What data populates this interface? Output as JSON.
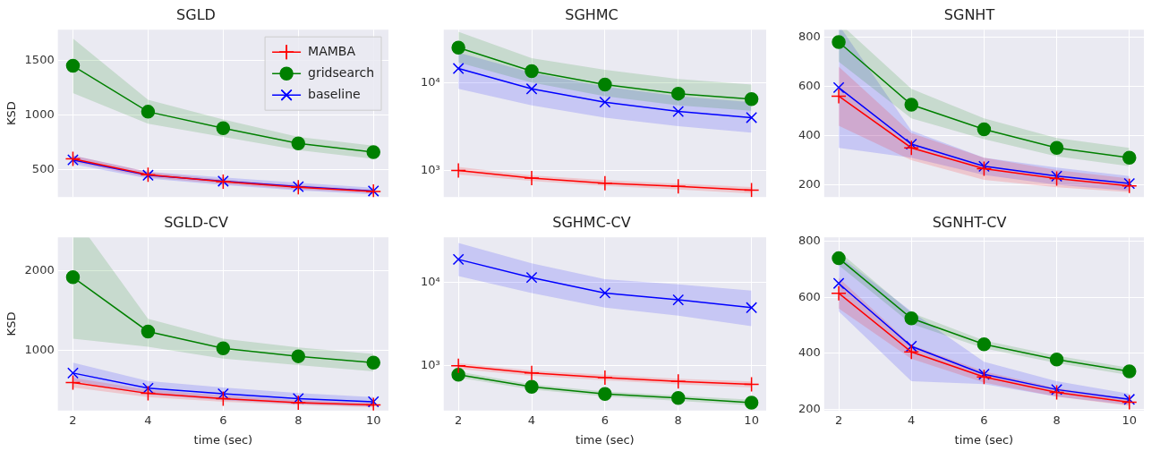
{
  "chart_data": [
    {
      "type": "line",
      "title": "SGLD",
      "y_label": "KSD",
      "x": [
        2,
        4,
        6,
        8,
        10
      ],
      "xlim": [
        1.6,
        10.4
      ],
      "xticks": [
        2,
        4,
        6,
        8,
        10
      ],
      "ylim": [
        250,
        1780
      ],
      "yticks": [
        500,
        1000,
        1500
      ],
      "grid": true,
      "tick_labels": "y",
      "legend": "upper right",
      "series": [
        {
          "name": "MAMBA",
          "color": "#ff0000",
          "marker": "plus",
          "values": [
            600,
            455,
            390,
            340,
            300
          ],
          "lower": [
            570,
            430,
            370,
            320,
            285
          ],
          "upper": [
            630,
            480,
            410,
            360,
            315
          ]
        },
        {
          "name": "gridsearch",
          "color": "#008000",
          "marker": "circle",
          "values": [
            1450,
            1030,
            880,
            740,
            660
          ],
          "lower": [
            1200,
            920,
            800,
            680,
            600
          ],
          "upper": [
            1700,
            1140,
            960,
            800,
            720
          ]
        },
        {
          "name": "baseline",
          "color": "#0000ff",
          "marker": "x",
          "values": [
            590,
            450,
            395,
            345,
            305
          ],
          "lower": [
            550,
            420,
            360,
            310,
            275
          ],
          "upper": [
            630,
            480,
            430,
            380,
            335
          ]
        }
      ]
    },
    {
      "type": "line",
      "title": "SGHMC",
      "x": [
        2,
        4,
        6,
        8,
        10
      ],
      "xlim": [
        1.6,
        10.4
      ],
      "xticks": [
        2,
        4,
        6,
        8,
        10
      ],
      "ylim": [
        500,
        40000
      ],
      "yticks": [
        {
          "value": 1000,
          "label": "10³"
        },
        {
          "value": 10000,
          "label": "10⁴"
        }
      ],
      "log": "y",
      "grid": true,
      "tick_labels": "y",
      "series": [
        {
          "name": "MAMBA",
          "color": "#ff0000",
          "marker": "plus",
          "values": [
            1000,
            820,
            720,
            660,
            600
          ],
          "lower": [
            900,
            760,
            670,
            610,
            550
          ],
          "upper": [
            1100,
            880,
            780,
            710,
            650
          ]
        },
        {
          "name": "gridsearch",
          "color": "#008000",
          "marker": "circle",
          "values": [
            25000,
            13500,
            9500,
            7500,
            6500
          ],
          "lower": [
            17000,
            10000,
            7000,
            5500,
            4800
          ],
          "upper": [
            38000,
            19000,
            14000,
            11000,
            9500
          ]
        },
        {
          "name": "baseline",
          "color": "#0000ff",
          "marker": "x",
          "values": [
            14500,
            8500,
            6000,
            4700,
            4000
          ],
          "lower": [
            8500,
            5500,
            4000,
            3200,
            2700
          ],
          "upper": [
            22000,
            13000,
            9000,
            7000,
            6000
          ]
        }
      ]
    },
    {
      "type": "line",
      "title": "SGNHT",
      "x": [
        2,
        4,
        6,
        8,
        10
      ],
      "xlim": [
        1.6,
        10.4
      ],
      "xticks": [
        2,
        4,
        6,
        8,
        10
      ],
      "ylim": [
        150,
        830
      ],
      "yticks": [
        200,
        400,
        600,
        800
      ],
      "grid": true,
      "tick_labels": "y",
      "series": [
        {
          "name": "MAMBA",
          "color": "#ff0000",
          "marker": "plus",
          "values": [
            560,
            350,
            265,
            225,
            195
          ],
          "lower": [
            440,
            300,
            220,
            190,
            170
          ],
          "upper": [
            680,
            410,
            310,
            260,
            225
          ]
        },
        {
          "name": "gridsearch",
          "color": "#008000",
          "marker": "circle",
          "values": [
            780,
            525,
            425,
            350,
            310
          ],
          "lower": [
            700,
            470,
            385,
            315,
            275
          ],
          "upper": [
            860,
            590,
            470,
            390,
            350
          ]
        },
        {
          "name": "baseline",
          "color": "#0000ff",
          "marker": "x",
          "values": [
            595,
            365,
            275,
            235,
            205
          ],
          "lower": [
            350,
            310,
            240,
            200,
            175
          ],
          "upper": [
            850,
            420,
            310,
            270,
            235
          ]
        }
      ]
    },
    {
      "type": "line",
      "title": "SGLD-CV",
      "y_label": "KSD",
      "x_label": "time (sec)",
      "x": [
        2,
        4,
        6,
        8,
        10
      ],
      "xlim": [
        1.6,
        10.4
      ],
      "xticks": [
        2,
        4,
        6,
        8,
        10
      ],
      "ylim": [
        250,
        2420
      ],
      "yticks": [
        1000,
        2000
      ],
      "grid": true,
      "series": [
        {
          "name": "MAMBA",
          "color": "#ff0000",
          "marker": "plus",
          "values": [
            600,
            465,
            400,
            350,
            320
          ],
          "lower": [
            540,
            420,
            360,
            320,
            290
          ],
          "upper": [
            660,
            510,
            440,
            380,
            350
          ]
        },
        {
          "name": "gridsearch",
          "color": "#008000",
          "marker": "circle",
          "values": [
            1920,
            1240,
            1030,
            930,
            850
          ],
          "lower": [
            1150,
            1050,
            900,
            820,
            740
          ],
          "upper": [
            2700,
            1400,
            1150,
            1040,
            960
          ]
        },
        {
          "name": "baseline",
          "color": "#0000ff",
          "marker": "x",
          "values": [
            720,
            530,
            460,
            400,
            360
          ],
          "lower": [
            620,
            450,
            380,
            330,
            300
          ],
          "upper": [
            850,
            620,
            540,
            470,
            420
          ]
        }
      ]
    },
    {
      "type": "line",
      "title": "SGHMC-CV",
      "x_label": "time (sec)",
      "x": [
        2,
        4,
        6,
        8,
        10
      ],
      "xlim": [
        1.6,
        10.4
      ],
      "xticks": [
        2,
        4,
        6,
        8,
        10
      ],
      "ylim": [
        290,
        35000
      ],
      "yticks": [
        {
          "value": 1000,
          "label": "10³"
        },
        {
          "value": 10000,
          "label": "10⁴"
        }
      ],
      "log": "y",
      "grid": true,
      "series": [
        {
          "name": "MAMBA",
          "color": "#ff0000",
          "marker": "plus",
          "values": [
            1000,
            820,
            720,
            650,
            600
          ],
          "lower": [
            920,
            760,
            670,
            600,
            550
          ],
          "upper": [
            1080,
            880,
            780,
            700,
            650
          ]
        },
        {
          "name": "gridsearch",
          "color": "#008000",
          "marker": "circle",
          "values": [
            780,
            560,
            460,
            410,
            360
          ],
          "lower": [
            720,
            520,
            430,
            380,
            335
          ],
          "upper": [
            850,
            600,
            490,
            440,
            390
          ]
        },
        {
          "name": "baseline",
          "color": "#0000ff",
          "marker": "x",
          "values": [
            19000,
            11500,
            7500,
            6200,
            5000
          ],
          "lower": [
            12000,
            7500,
            5000,
            4000,
            3000
          ],
          "upper": [
            30000,
            17000,
            11000,
            9500,
            8000
          ]
        }
      ]
    },
    {
      "type": "line",
      "title": "SGNHT-CV",
      "x_label": "time (sec)",
      "x": [
        2,
        4,
        6,
        8,
        10
      ],
      "xlim": [
        1.6,
        10.4
      ],
      "xticks": [
        2,
        4,
        6,
        8,
        10
      ],
      "ylim": [
        195,
        815
      ],
      "yticks": [
        200,
        400,
        600,
        800
      ],
      "grid": true,
      "series": [
        {
          "name": "MAMBA",
          "color": "#ff0000",
          "marker": "plus",
          "values": [
            615,
            405,
            315,
            260,
            225
          ],
          "lower": [
            560,
            380,
            295,
            245,
            212
          ],
          "upper": [
            670,
            430,
            335,
            275,
            238
          ]
        },
        {
          "name": "gridsearch",
          "color": "#008000",
          "marker": "circle",
          "values": [
            740,
            525,
            432,
            378,
            335
          ],
          "lower": [
            715,
            505,
            418,
            365,
            322
          ],
          "upper": [
            765,
            545,
            446,
            391,
            348
          ]
        },
        {
          "name": "baseline",
          "color": "#0000ff",
          "marker": "x",
          "values": [
            650,
            425,
            325,
            270,
            235
          ],
          "lower": [
            550,
            300,
            290,
            245,
            215
          ],
          "upper": [
            750,
            550,
            370,
            300,
            255
          ]
        }
      ]
    }
  ]
}
